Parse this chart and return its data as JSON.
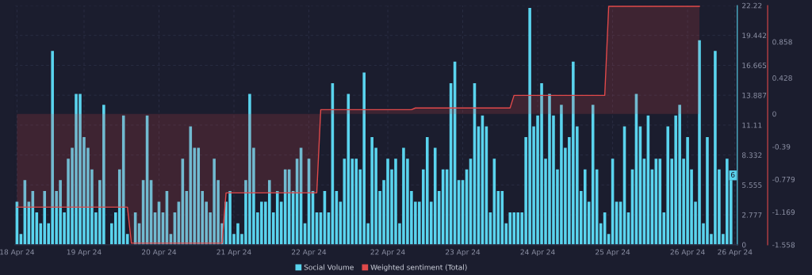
{
  "chart_data": {
    "type": "bar",
    "categories": [
      "18 Apr 24",
      null,
      null,
      null,
      null,
      null,
      null,
      null,
      null,
      null,
      null,
      null,
      null,
      null,
      null,
      null,
      null,
      "19 Apr 24",
      null,
      null,
      null,
      null,
      null,
      null,
      null,
      null,
      null,
      null,
      null,
      null,
      null,
      null,
      null,
      null,
      null,
      null,
      "20 Apr 24",
      null,
      null,
      null,
      null,
      null,
      null,
      null,
      null,
      null,
      null,
      null,
      null,
      null,
      null,
      null,
      null,
      null,
      null,
      "21 Apr 24",
      null,
      null,
      null,
      null,
      null,
      null,
      null,
      null,
      null,
      null,
      null,
      null,
      null,
      null,
      null,
      null,
      null,
      null,
      "22 Apr 24",
      null,
      null,
      null,
      null,
      null,
      null,
      null,
      null,
      null,
      null,
      null,
      null,
      null,
      null,
      null,
      null,
      null,
      null,
      null,
      "22 Apr 24",
      null,
      null,
      null,
      null,
      null,
      null,
      null,
      null,
      null,
      null,
      null,
      null,
      null,
      null,
      null,
      null,
      null,
      null,
      "23 Apr 24",
      null,
      null,
      null,
      null,
      null,
      null,
      null,
      null,
      null,
      null,
      null,
      null,
      null,
      null,
      null,
      null,
      null,
      null,
      "24 Apr 24",
      null,
      null,
      null,
      null,
      null,
      null,
      null,
      null,
      null,
      null,
      null,
      null,
      null,
      null,
      null,
      null,
      null,
      null,
      "25 Apr 24",
      null,
      null,
      null,
      null,
      null,
      null,
      null,
      null,
      null,
      null,
      null,
      null,
      null,
      null,
      null,
      null,
      null,
      null,
      "26 Apr 24",
      null,
      null,
      null,
      null,
      null,
      null,
      null,
      null,
      null,
      null,
      null,
      "26 Apr 24"
    ],
    "series": [
      {
        "name": "Social Volume",
        "color": "#5ad4ee",
        "values": [
          4,
          1,
          6,
          4,
          5,
          3,
          2,
          5,
          2,
          18,
          5,
          6,
          3,
          8,
          9,
          14,
          14,
          10,
          9,
          7,
          3,
          6,
          13,
          0,
          2,
          3,
          7,
          12,
          1,
          0,
          3,
          2,
          6,
          12,
          6,
          3,
          4,
          3,
          5,
          1,
          3,
          4,
          8,
          5,
          11,
          9,
          9,
          5,
          4,
          3,
          8,
          6,
          2,
          4,
          5,
          1,
          2,
          1,
          6,
          14,
          9,
          3,
          4,
          4,
          6,
          3,
          5,
          4,
          7,
          7,
          5,
          8,
          9,
          2,
          8,
          5,
          3,
          3,
          5,
          3,
          15,
          5,
          4,
          8,
          14,
          8,
          8,
          7,
          16,
          2,
          10,
          9,
          5,
          6,
          8,
          7,
          8,
          2,
          9,
          8,
          5,
          4,
          4,
          7,
          10,
          4,
          9,
          5,
          7,
          7,
          15,
          17,
          6,
          6,
          7,
          8,
          15,
          11,
          12,
          11,
          3,
          8,
          5,
          5,
          2,
          3,
          3,
          3,
          3,
          10,
          22,
          11,
          12,
          15,
          8,
          14,
          12,
          7,
          13,
          9,
          10,
          17,
          11,
          5,
          7,
          4,
          13,
          7,
          2,
          3,
          1,
          8,
          4,
          4,
          11,
          3,
          7,
          14,
          11,
          8,
          12,
          7,
          8,
          8,
          3,
          11,
          8,
          12,
          13,
          8,
          10,
          7,
          4,
          19,
          2,
          10,
          1,
          18,
          7,
          1,
          8,
          6,
          null
        ]
      },
      {
        "name": "Weighted sentiment (Total)",
        "type": "area",
        "axis": "y2",
        "color": "#e0494a",
        "values": [
          -1.11,
          -1.11,
          -1.11,
          -1.11,
          -1.11,
          -1.11,
          -1.11,
          -1.11,
          -1.11,
          -1.11,
          -1.11,
          -1.11,
          -1.11,
          -1.11,
          -1.11,
          -1.11,
          -1.11,
          -1.11,
          -1.11,
          -1.11,
          -1.11,
          -1.11,
          -1.11,
          -1.11,
          -1.11,
          -1.11,
          -1.11,
          -1.11,
          -1.11,
          -1.54,
          -1.54,
          -1.54,
          -1.54,
          -1.54,
          -1.54,
          -1.54,
          -1.54,
          -1.54,
          -1.54,
          -1.54,
          -1.54,
          -1.54,
          -1.54,
          -1.54,
          -1.54,
          -1.54,
          -1.54,
          -1.54,
          -1.54,
          -1.54,
          -1.54,
          -1.54,
          -1.54,
          -0.94,
          -0.94,
          -0.94,
          -0.94,
          -0.94,
          -0.94,
          -0.94,
          -0.94,
          -0.94,
          -0.94,
          -0.94,
          -0.94,
          -0.94,
          -0.94,
          -0.94,
          -0.94,
          -0.94,
          -0.94,
          -0.94,
          -0.94,
          -0.94,
          -0.94,
          -0.94,
          -0.94,
          0.05,
          0.05,
          0.05,
          0.05,
          0.05,
          0.05,
          0.05,
          0.05,
          0.05,
          0.05,
          0.05,
          0.05,
          0.05,
          0.05,
          0.05,
          0.05,
          0.05,
          0.05,
          0.05,
          0.05,
          0.05,
          0.05,
          0.05,
          0.05,
          0.07,
          0.07,
          0.07,
          0.07,
          0.07,
          0.07,
          0.07,
          0.07,
          0.07,
          0.07,
          0.07,
          0.07,
          0.07,
          0.07,
          0.07,
          0.07,
          0.07,
          0.07,
          0.07,
          0.07,
          0.07,
          0.07,
          0.07,
          0.07,
          0.07,
          0.22,
          0.22,
          0.22,
          0.22,
          0.22,
          0.22,
          0.22,
          0.22,
          0.22,
          0.22,
          0.22,
          0.22,
          0.22,
          0.22,
          0.22,
          0.22,
          0.22,
          0.22,
          0.22,
          0.22,
          0.22,
          0.22,
          0.22,
          0.22,
          1.28,
          1.28,
          1.28,
          1.28,
          1.28,
          1.28,
          1.28,
          1.28,
          1.28,
          1.28,
          1.28,
          1.28,
          1.28,
          1.28,
          1.28,
          1.28,
          1.28,
          1.28,
          1.28,
          1.28,
          1.28,
          1.28,
          1.28,
          1.28,
          null,
          null,
          null,
          null,
          null,
          null,
          null,
          null,
          null
        ]
      }
    ],
    "ylim": [
      0,
      22.22
    ],
    "yticks": [
      0,
      2.777,
      5.555,
      8.332,
      11.11,
      13.887,
      16.665,
      19.442,
      22.22
    ],
    "y2lim": [
      -1.558,
      1.29
    ],
    "y2ticks": [
      -1.558,
      -1.169,
      -0.779,
      -0.39,
      0,
      0.428,
      0.858
    ],
    "annotations": [
      "6"
    ],
    "grid": true,
    "legend": "bottom"
  }
}
